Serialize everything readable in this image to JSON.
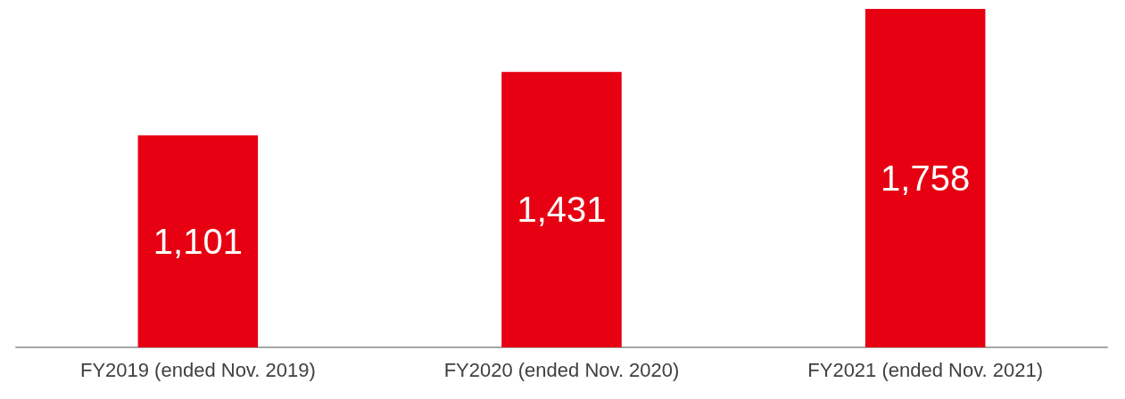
{
  "chart_data": {
    "type": "bar",
    "categories": [
      "FY2019 (ended Nov. 2019)",
      "FY2020 (ended Nov. 2020)",
      "FY2021 (ended Nov. 2021)"
    ],
    "values": [
      1101,
      1431,
      1758
    ],
    "value_labels": [
      "1,101",
      "1,431",
      "1,758"
    ],
    "color": "#e60012",
    "grid": false
  }
}
